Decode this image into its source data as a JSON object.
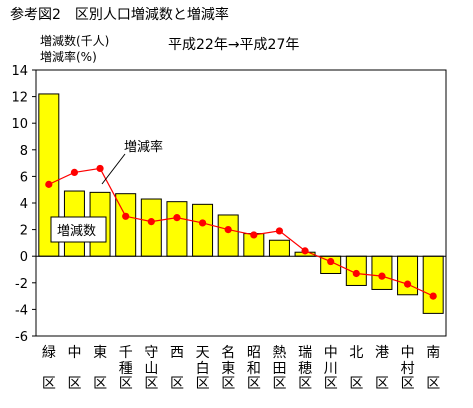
{
  "figure_title": "参考図2　区別人口増減数と増減率",
  "period_label": "平成22年→平成27年",
  "chart_data": {
    "type": "bar",
    "ylabel_line1": "増減数(千人)",
    "ylabel_line2": "増減率(%)",
    "ylim": [
      -6,
      14
    ],
    "yticks": [
      14,
      12,
      10,
      8,
      6,
      4,
      2,
      0,
      -2,
      -4,
      -6
    ],
    "grid": false,
    "categories": [
      [
        "緑",
        "区"
      ],
      [
        "中",
        "区"
      ],
      [
        "東",
        "区"
      ],
      [
        "千",
        "種",
        "区"
      ],
      [
        "守",
        "山",
        "区"
      ],
      [
        "西",
        "区"
      ],
      [
        "天",
        "白",
        "区"
      ],
      [
        "名",
        "東",
        "区"
      ],
      [
        "昭",
        "和",
        "区"
      ],
      [
        "熱",
        "田",
        "区"
      ],
      [
        "瑞",
        "穂",
        "区"
      ],
      [
        "中",
        "川",
        "区"
      ],
      [
        "北",
        "区"
      ],
      [
        "港",
        "区"
      ],
      [
        "中",
        "村",
        "区"
      ],
      [
        "南",
        "区"
      ]
    ],
    "series": [
      {
        "name": "増減数",
        "type": "bar",
        "color": "#ffff00",
        "values": [
          12.2,
          4.9,
          4.8,
          4.7,
          4.3,
          4.1,
          3.9,
          3.1,
          1.7,
          1.2,
          0.3,
          -1.3,
          -2.2,
          -2.5,
          -2.9,
          -4.3
        ]
      },
      {
        "name": "増減率",
        "type": "line",
        "color": "#ff0000",
        "values": [
          5.4,
          6.3,
          6.6,
          3.0,
          2.6,
          2.9,
          2.5,
          2.0,
          1.6,
          1.9,
          0.4,
          -0.4,
          -1.3,
          -1.5,
          -2.1,
          -3.0
        ]
      }
    ]
  }
}
